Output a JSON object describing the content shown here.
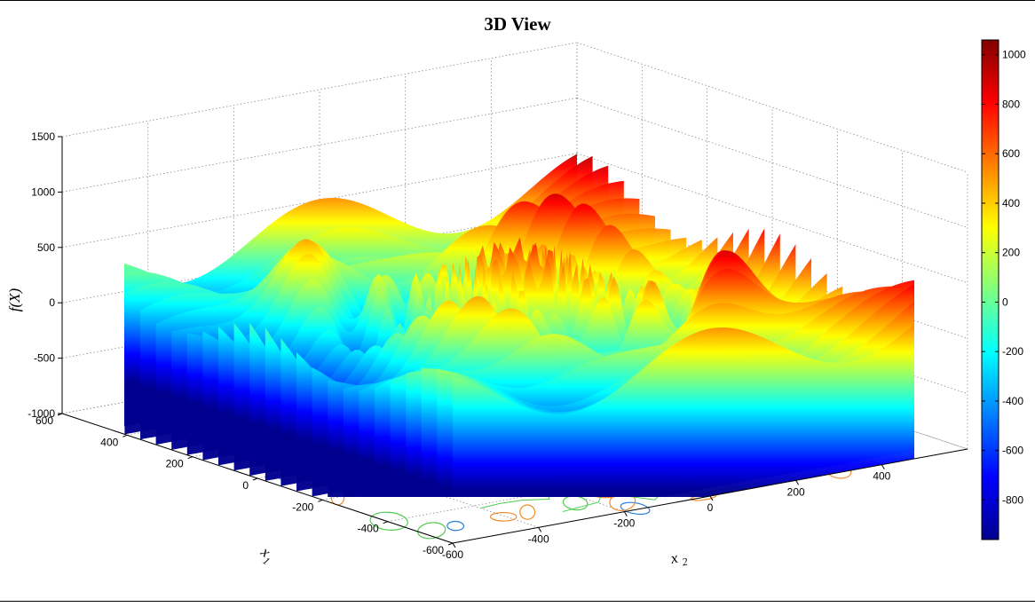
{
  "chart_data": {
    "type": "surface",
    "title": "3D View",
    "xlabel": "x",
    "xlabel_sub": "1",
    "ylabel": "x",
    "ylabel_sub": "2",
    "zlabel": "f(X)",
    "xlim": [
      -600,
      600
    ],
    "ylim": [
      -600,
      600
    ],
    "zlim": [
      -1000,
      1500
    ],
    "x_ticks": [
      "-600",
      "-400",
      "-200",
      "0",
      "200",
      "400",
      "600"
    ],
    "y_ticks": [
      "-600",
      "-400",
      "-200",
      "0",
      "200",
      "400"
    ],
    "z_ticks": [
      "-1000",
      "-500",
      "0",
      "500",
      "1000",
      "1500"
    ],
    "colorbar": {
      "range": [
        -960,
        1060
      ],
      "ticks": [
        "-800",
        "-600",
        "-400",
        "-200",
        "0",
        "200",
        "400",
        "600",
        "800",
        "1000"
      ],
      "colormap": "jet"
    },
    "grid": true,
    "contours_on_floor": true
  }
}
